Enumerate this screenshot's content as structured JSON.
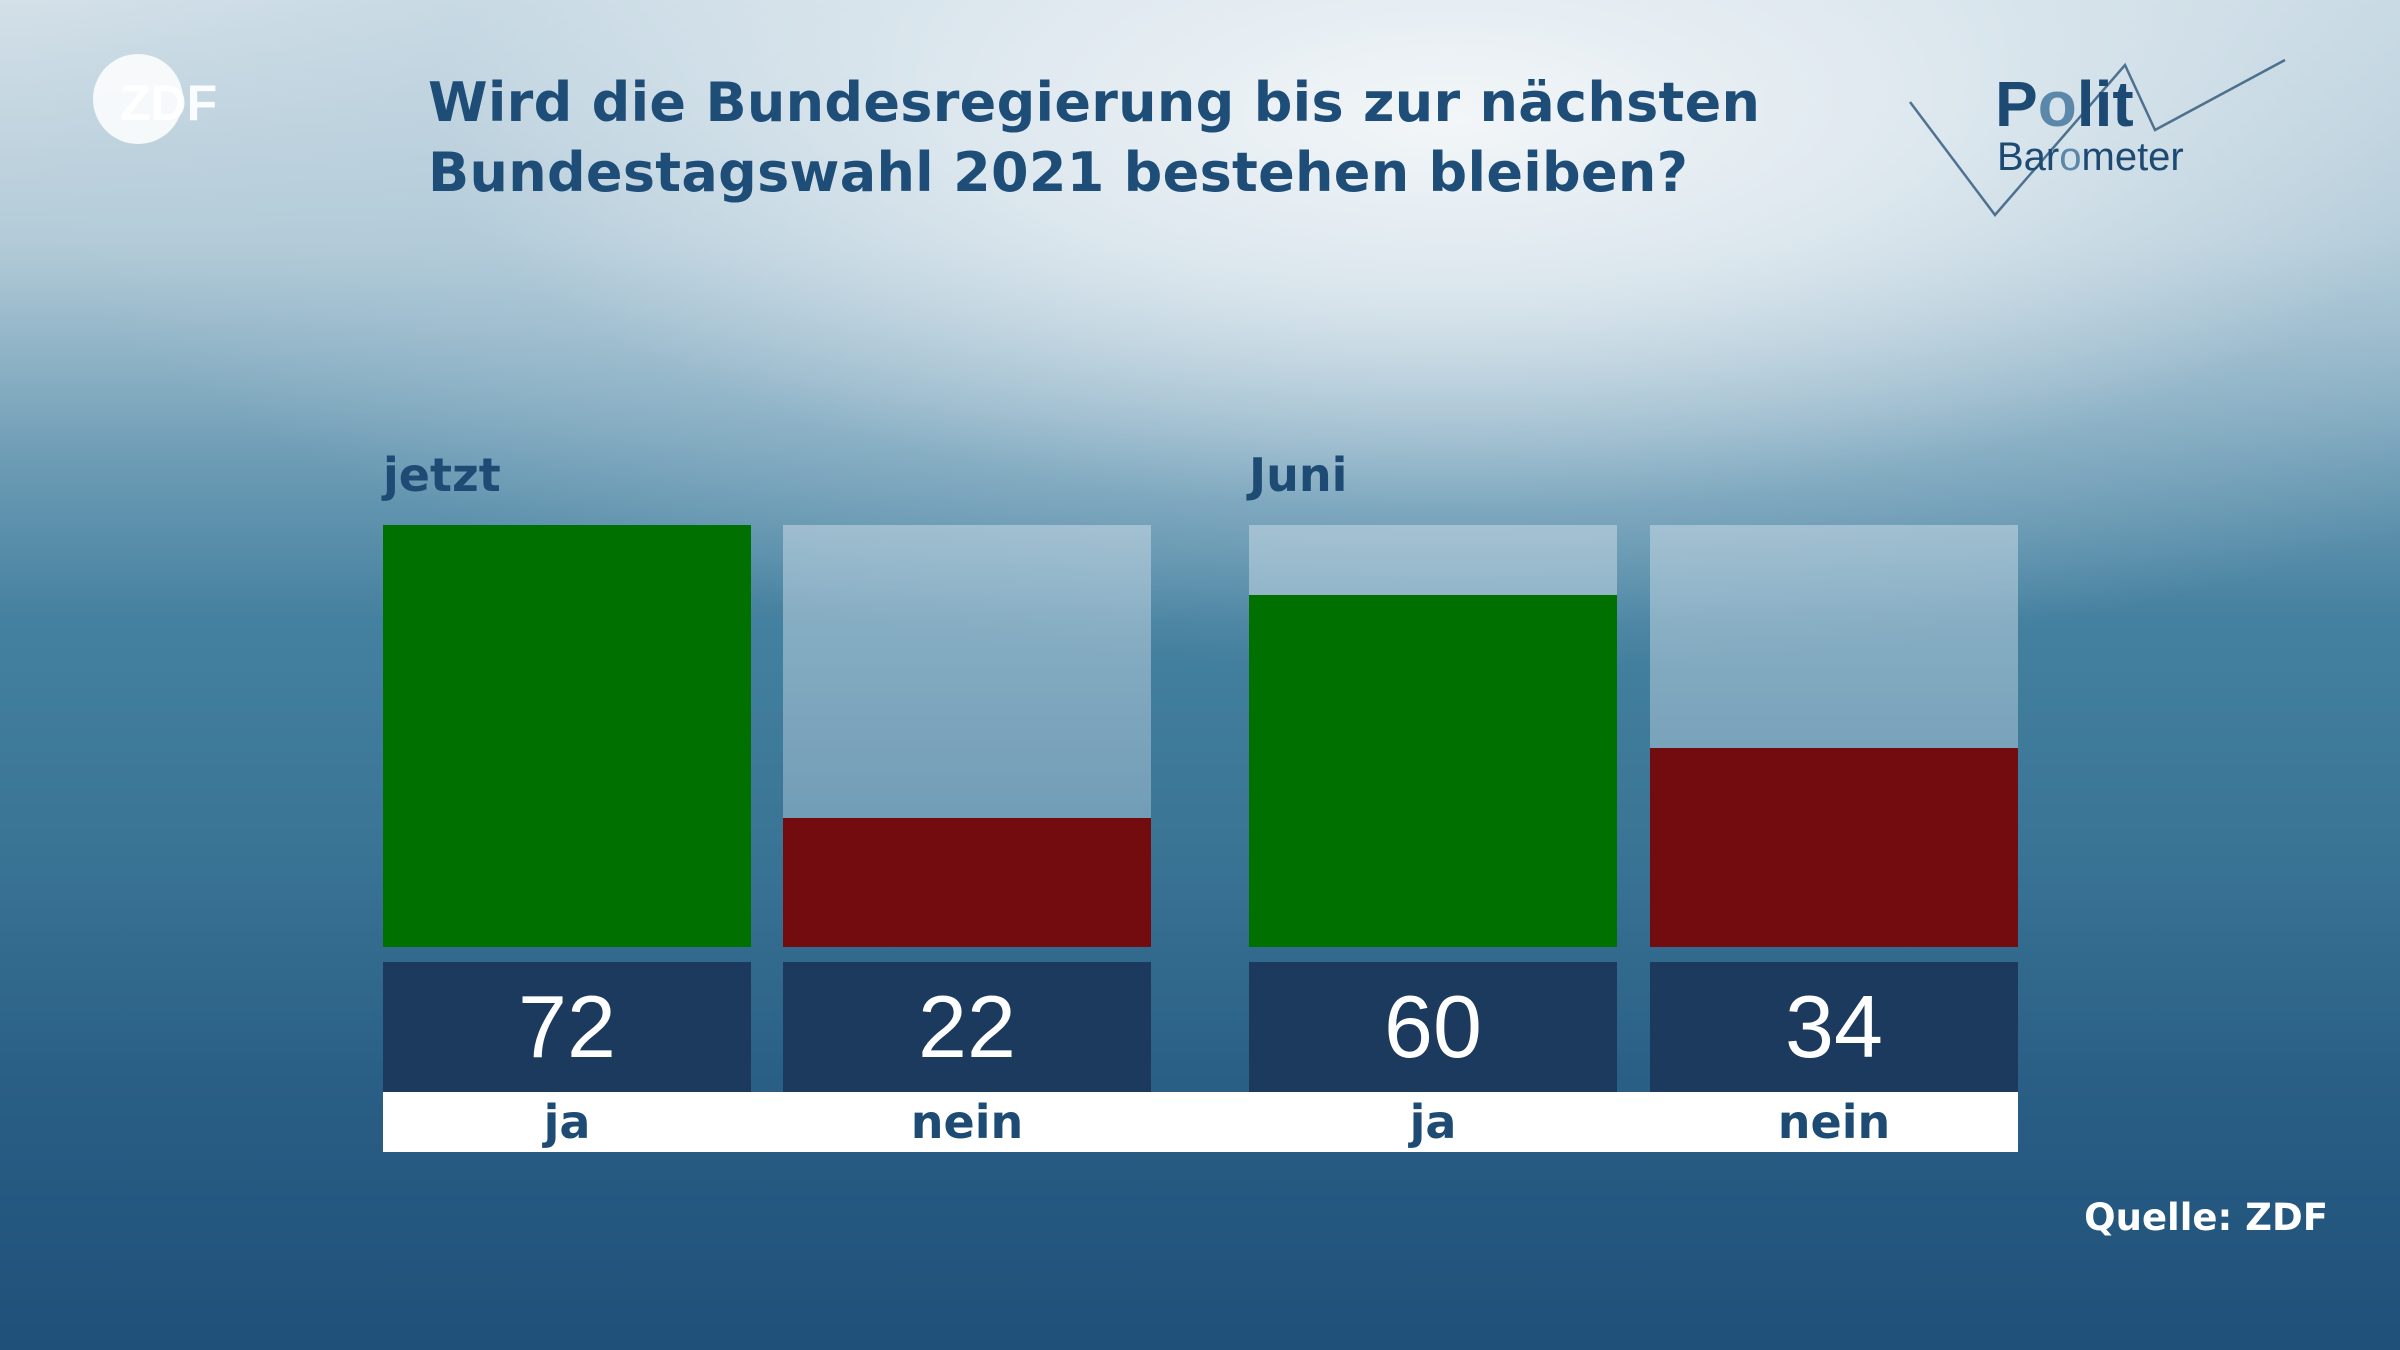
{
  "broadcaster": {
    "logo_text": "ZDF"
  },
  "title": {
    "line1": "Wird die Bundesregierung bis zur nächsten",
    "line2": "Bundestagswahl 2021 bestehen bleiben?"
  },
  "brand": {
    "line1_a": "P",
    "line1_b": "o",
    "line1_c": "lit",
    "line2_a": "Bar",
    "line2_b": "o",
    "line2_c": "meter"
  },
  "source": "Quelle: ZDF",
  "colors": {
    "ja": "#007000",
    "nein": "#720c0e",
    "value_box": "#1b3a5e",
    "title": "#1e4e78",
    "bar_track": "#b9cfdc"
  },
  "chart_data": {
    "type": "bar",
    "title": "Wird die Bundesregierung bis zur nächsten Bundestagswahl 2021 bestehen bleiben?",
    "unit": "%",
    "ylim": [
      0,
      72
    ],
    "groups": [
      {
        "label": "jetzt",
        "bars": [
          {
            "category": "ja",
            "value": 72
          },
          {
            "category": "nein",
            "value": 22
          }
        ]
      },
      {
        "label": "Juni",
        "bars": [
          {
            "category": "ja",
            "value": 60
          },
          {
            "category": "nein",
            "value": 34
          }
        ]
      }
    ]
  }
}
